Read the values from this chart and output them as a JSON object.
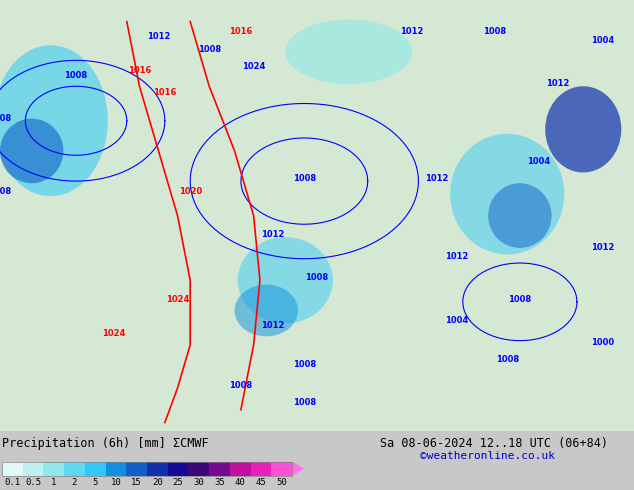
{
  "title_left": "Precipitation (6h) [mm] ECMWF",
  "title_right_line1": "Sa 08-06-2024 12..18 UTC (06+84)",
  "title_right_line2": "©weatheronline.co.uk",
  "colorbar_labels": [
    "0.1",
    "0.5",
    "1",
    "2",
    "5",
    "10",
    "15",
    "20",
    "25",
    "30",
    "35",
    "40",
    "45",
    "50"
  ],
  "colorbar_colors": [
    "#e0f8f8",
    "#c0f0f0",
    "#90e8e8",
    "#60d8f0",
    "#30c8f8",
    "#1090e0",
    "#1060c8",
    "#1030b0",
    "#180898",
    "#3c0878",
    "#780890",
    "#c010a0",
    "#e820b8",
    "#ff50d8"
  ],
  "colorbar_triangle_color": "#ff70e8",
  "background_color": "#c8c8c8",
  "bottom_bar_color": "#d8d8d8",
  "map_background": "#d4e8d4",
  "fig_width": 6.34,
  "fig_height": 4.9,
  "dpi": 100
}
